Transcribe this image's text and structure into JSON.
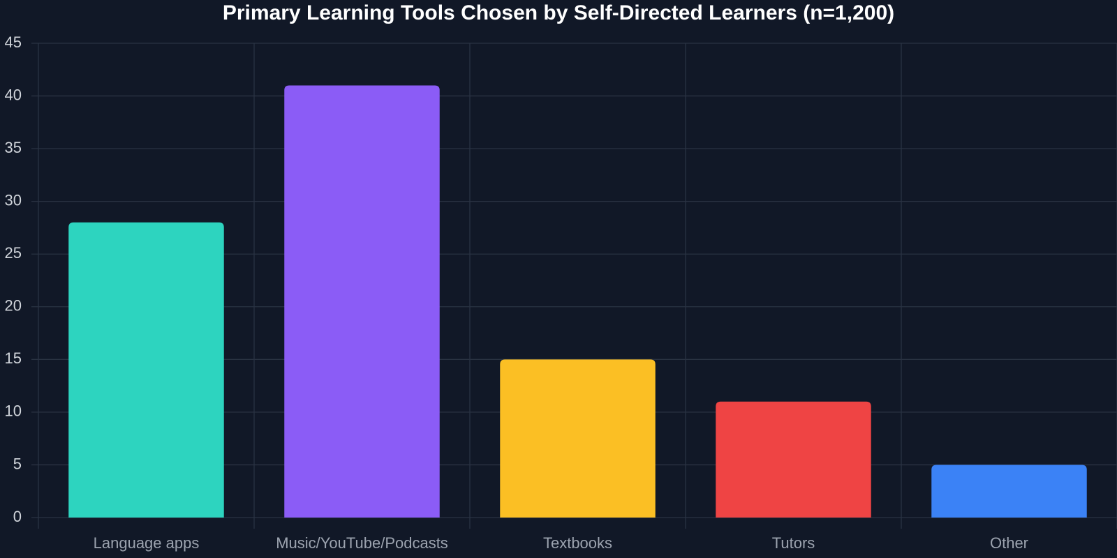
{
  "chart_data": {
    "type": "bar",
    "title": "Primary Learning Tools Chosen by Self-Directed Learners (n=1,200)",
    "categories": [
      "Language apps",
      "Music/YouTube/Podcasts",
      "Textbooks",
      "Tutors",
      "Other"
    ],
    "values": [
      28,
      41,
      15,
      11,
      5
    ],
    "colors": [
      "#2dd4bf",
      "#8b5cf6",
      "#fbbf24",
      "#ef4444",
      "#3b82f6"
    ],
    "ylim": [
      0,
      45
    ],
    "yticks": [
      0,
      5,
      10,
      15,
      20,
      25,
      30,
      35,
      40,
      45
    ],
    "grid": true
  }
}
